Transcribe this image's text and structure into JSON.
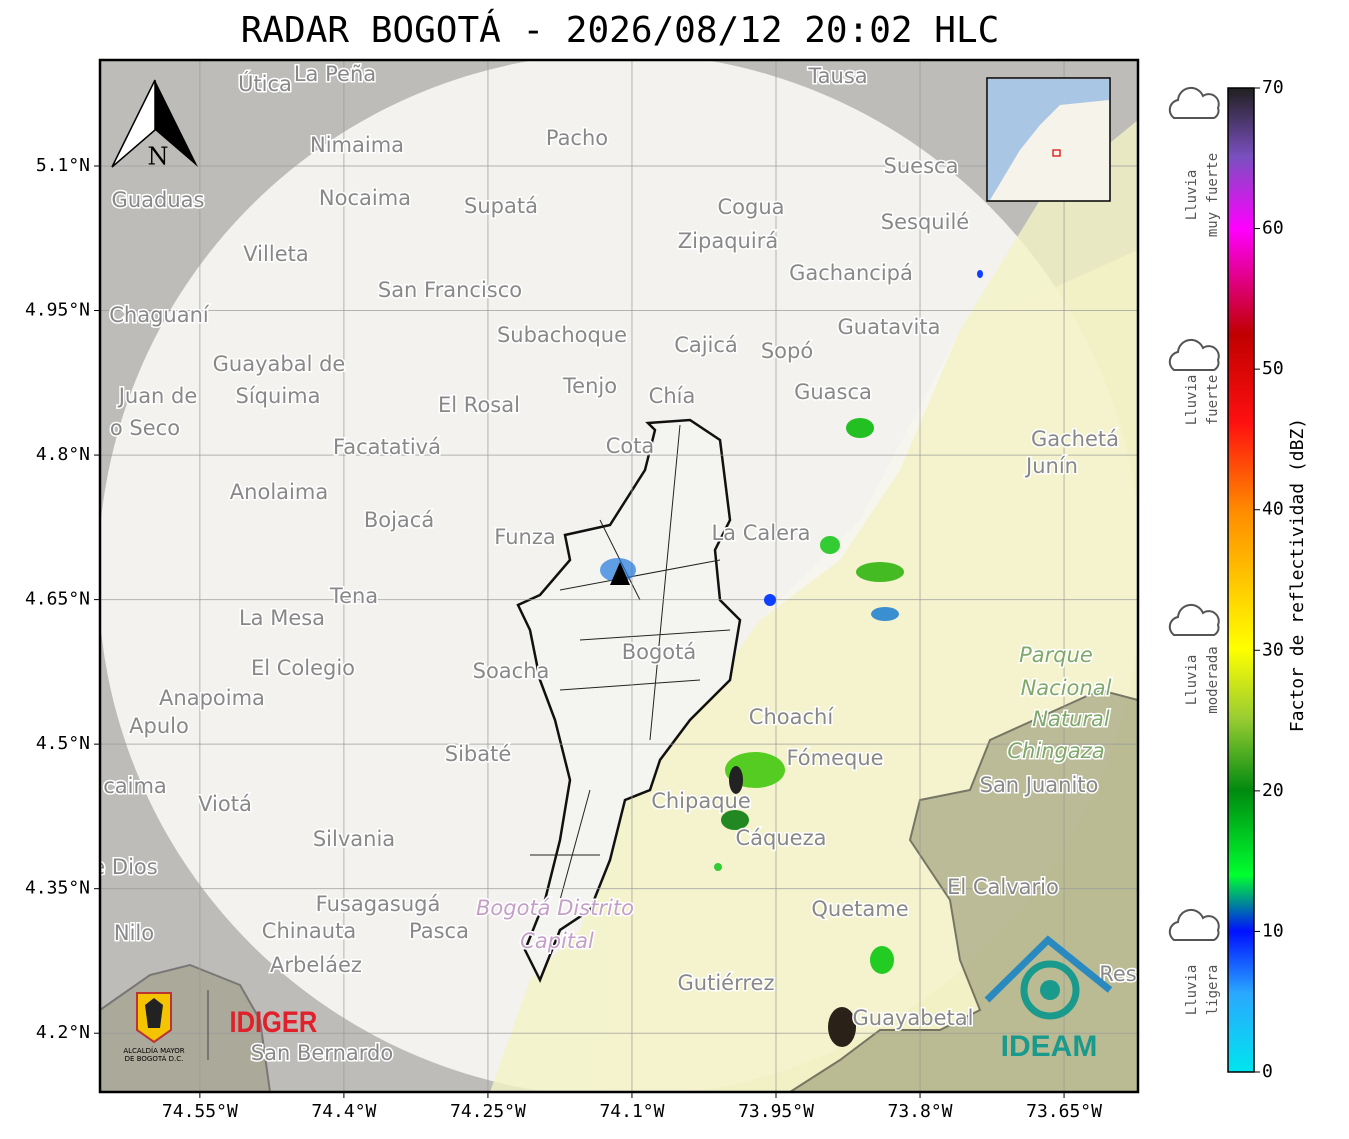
{
  "title": "RADAR BOGOTÁ - 2026/08/12 20:02 HLC",
  "map": {
    "xlim": [
      -74.654,
      -73.573
    ],
    "ylim": [
      4.139,
      5.21
    ],
    "xticks": [
      {
        "value": -74.55,
        "label": "74.55°W"
      },
      {
        "value": -74.4,
        "label": "74.4°W"
      },
      {
        "value": -74.25,
        "label": "74.25°W"
      },
      {
        "value": -74.1,
        "label": "74.1°W"
      },
      {
        "value": -73.95,
        "label": "73.95°W"
      },
      {
        "value": -73.8,
        "label": "73.8°W"
      },
      {
        "value": -73.65,
        "label": "73.65°W"
      }
    ],
    "yticks": [
      {
        "value": 5.1,
        "label": "5.1°N"
      },
      {
        "value": 4.95,
        "label": "4.95°N"
      },
      {
        "value": 4.8,
        "label": "4.8°N"
      },
      {
        "value": 4.65,
        "label": "4.65°N"
      },
      {
        "value": 4.5,
        "label": "4.5°N"
      },
      {
        "value": 4.35,
        "label": "4.35°N"
      },
      {
        "value": 4.2,
        "label": "4.2°N"
      }
    ],
    "north": "N",
    "places": [
      "Útica",
      "La Peña",
      "Tausa",
      "Pacho",
      "Nimaima",
      "Suesca",
      "Guaduas",
      "Nocaima",
      "Supatá",
      "Cogua",
      "Zipaquirá",
      "Sesquilé",
      "Villeta",
      "Gachancipá",
      "San Francisco",
      "Chaguaní",
      "Subachoque",
      "Guatavita",
      "Cajicá",
      "Sopó",
      "Guayabal de",
      "Síquima",
      "Juan de",
      "o Seco",
      "Tenjo",
      "Chía",
      "El Rosal",
      "Guasca",
      "Facatativá",
      "Cota",
      "Gachetá",
      "Junín",
      "Anolaima",
      "Bojacá",
      "Funza",
      "La Calera",
      "Tena",
      "La Mesa",
      "Bogotá",
      "El Colegio",
      "Soacha",
      "Anapoima",
      "Apulo",
      "Choachí",
      "Sibaté",
      "Fómeque",
      "San Juanito",
      "caima",
      "Viotá",
      "Chipaque",
      "Silvania",
      "Cáqueza",
      "e Dios",
      "El Calvario",
      "Fusagasugá",
      "Quetame",
      "Chinauta",
      "Pasca",
      "Nilo",
      "Arbeláez",
      "Gutiérrez",
      "Guayabetal",
      "San Bernardo",
      "Res"
    ],
    "parks": [
      "Parque",
      "Nacional",
      "Natural",
      "Chingaza",
      "Bogotá Distrito",
      "Capital"
    ]
  },
  "logos": {
    "idiger": "IDIGER",
    "ideam": "IDEAM",
    "alcaldia": [
      "ALCALDÍA MAYOR",
      "DE BOGOTÁ D.C."
    ]
  },
  "colorbar": {
    "label": "Factor de reflectividad (dBZ)",
    "lim": [
      0,
      70
    ],
    "ticks": [
      0,
      10,
      20,
      30,
      40,
      50,
      60,
      70
    ]
  },
  "rain_levels": [
    [
      "Lluvia",
      "ligera"
    ],
    [
      "Lluvia",
      "moderada"
    ],
    [
      "Lluvia",
      "fuerte"
    ],
    [
      "Lluvia",
      "muy fuerte"
    ]
  ]
}
